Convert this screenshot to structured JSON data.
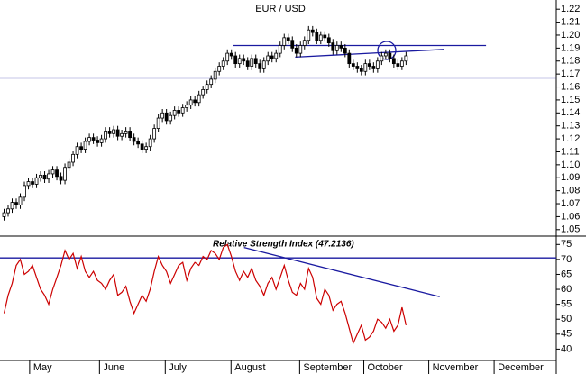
{
  "chart_data": [
    {
      "type": "candlestick",
      "title": "EUR / USD",
      "color": "#000000",
      "x": [
        0,
        1,
        2,
        3,
        4,
        5,
        6,
        7,
        8,
        9,
        10,
        11,
        12,
        13,
        14,
        15,
        16,
        17,
        18,
        19,
        20,
        21,
        22,
        23,
        24,
        25,
        26,
        27,
        28,
        29,
        30,
        31,
        32,
        33,
        34,
        35,
        36,
        37,
        38,
        39,
        40,
        41,
        42,
        43,
        44,
        45,
        46,
        47,
        48,
        49,
        50,
        51,
        52,
        53,
        54,
        55,
        56,
        57,
        58,
        59,
        60,
        61,
        62,
        63,
        64,
        65,
        66,
        67,
        68,
        69,
        70,
        71,
        72,
        73,
        74,
        75,
        76,
        77,
        78,
        79,
        80,
        81,
        82,
        83,
        84,
        85,
        86,
        87,
        88,
        89,
        90,
        91,
        92,
        93,
        94,
        95,
        96,
        97,
        98,
        99
      ],
      "open": [
        1.06,
        1.063,
        1.066,
        1.071,
        1.069,
        1.075,
        1.084,
        1.087,
        1.085,
        1.09,
        1.092,
        1.089,
        1.093,
        1.096,
        1.091,
        1.088,
        1.098,
        1.102,
        1.108,
        1.114,
        1.112,
        1.118,
        1.121,
        1.119,
        1.117,
        1.12,
        1.126,
        1.124,
        1.127,
        1.122,
        1.124,
        1.126,
        1.121,
        1.118,
        1.116,
        1.112,
        1.114,
        1.12,
        1.128,
        1.136,
        1.14,
        1.134,
        1.138,
        1.142,
        1.14,
        1.144,
        1.146,
        1.15,
        1.148,
        1.154,
        1.158,
        1.162,
        1.166,
        1.172,
        1.176,
        1.18,
        1.186,
        1.184,
        1.178,
        1.182,
        1.18,
        1.176,
        1.182,
        1.178,
        1.174,
        1.18,
        1.184,
        1.182,
        1.186,
        1.192,
        1.198,
        1.196,
        1.19,
        1.186,
        1.192,
        1.196,
        1.204,
        1.202,
        1.196,
        1.2,
        1.198,
        1.194,
        1.188,
        1.192,
        1.19,
        1.186,
        1.178,
        1.176,
        1.174,
        1.172,
        1.178,
        1.176,
        1.174,
        1.18,
        1.184,
        1.186,
        1.182,
        1.178,
        1.176,
        1.18
      ],
      "high": [
        1.066,
        1.069,
        1.074,
        1.074,
        1.078,
        1.087,
        1.09,
        1.09,
        1.093,
        1.095,
        1.095,
        1.096,
        1.099,
        1.099,
        1.094,
        1.101,
        1.105,
        1.111,
        1.117,
        1.117,
        1.121,
        1.124,
        1.124,
        1.122,
        1.123,
        1.129,
        1.129,
        1.13,
        1.13,
        1.127,
        1.129,
        1.129,
        1.124,
        1.121,
        1.119,
        1.117,
        1.123,
        1.131,
        1.139,
        1.143,
        1.143,
        1.141,
        1.145,
        1.145,
        1.147,
        1.149,
        1.153,
        1.153,
        1.157,
        1.161,
        1.165,
        1.169,
        1.175,
        1.179,
        1.183,
        1.189,
        1.189,
        1.187,
        1.185,
        1.185,
        1.183,
        1.185,
        1.185,
        1.181,
        1.183,
        1.187,
        1.187,
        1.189,
        1.195,
        1.201,
        1.201,
        1.199,
        1.193,
        1.195,
        1.199,
        1.207,
        1.207,
        1.205,
        1.203,
        1.203,
        1.201,
        1.197,
        1.195,
        1.195,
        1.193,
        1.189,
        1.181,
        1.179,
        1.177,
        1.181,
        1.181,
        1.179,
        1.183,
        1.187,
        1.189,
        1.189,
        1.185,
        1.181,
        1.183,
        1.187
      ],
      "low": [
        1.057,
        1.06,
        1.063,
        1.066,
        1.066,
        1.072,
        1.081,
        1.082,
        1.082,
        1.087,
        1.086,
        1.086,
        1.09,
        1.088,
        1.085,
        1.085,
        1.095,
        1.099,
        1.105,
        1.109,
        1.109,
        1.115,
        1.116,
        1.114,
        1.114,
        1.117,
        1.121,
        1.121,
        1.119,
        1.119,
        1.121,
        1.118,
        1.115,
        1.113,
        1.109,
        1.109,
        1.111,
        1.117,
        1.125,
        1.133,
        1.131,
        1.131,
        1.135,
        1.137,
        1.137,
        1.141,
        1.143,
        1.145,
        1.145,
        1.151,
        1.155,
        1.159,
        1.163,
        1.169,
        1.173,
        1.177,
        1.181,
        1.175,
        1.175,
        1.177,
        1.173,
        1.173,
        1.175,
        1.171,
        1.171,
        1.177,
        1.179,
        1.179,
        1.183,
        1.189,
        1.193,
        1.187,
        1.183,
        1.183,
        1.189,
        1.193,
        1.199,
        1.193,
        1.193,
        1.195,
        1.191,
        1.185,
        1.185,
        1.187,
        1.183,
        1.175,
        1.173,
        1.171,
        1.169,
        1.169,
        1.173,
        1.171,
        1.171,
        1.177,
        1.181,
        1.179,
        1.175,
        1.173,
        1.173,
        1.177
      ],
      "close": [
        1.063,
        1.066,
        1.071,
        1.069,
        1.075,
        1.084,
        1.087,
        1.085,
        1.09,
        1.092,
        1.089,
        1.093,
        1.096,
        1.091,
        1.088,
        1.098,
        1.102,
        1.108,
        1.114,
        1.112,
        1.118,
        1.121,
        1.119,
        1.117,
        1.12,
        1.126,
        1.124,
        1.127,
        1.122,
        1.124,
        1.126,
        1.121,
        1.118,
        1.116,
        1.112,
        1.114,
        1.12,
        1.128,
        1.136,
        1.14,
        1.134,
        1.138,
        1.142,
        1.14,
        1.144,
        1.146,
        1.15,
        1.148,
        1.154,
        1.158,
        1.162,
        1.166,
        1.172,
        1.176,
        1.18,
        1.186,
        1.184,
        1.178,
        1.182,
        1.18,
        1.176,
        1.182,
        1.178,
        1.174,
        1.18,
        1.184,
        1.182,
        1.186,
        1.192,
        1.198,
        1.196,
        1.19,
        1.186,
        1.192,
        1.196,
        1.204,
        1.202,
        1.196,
        1.2,
        1.198,
        1.194,
        1.188,
        1.192,
        1.19,
        1.186,
        1.178,
        1.176,
        1.174,
        1.172,
        1.178,
        1.176,
        1.174,
        1.18,
        1.184,
        1.186,
        1.182,
        1.178,
        1.176,
        1.18,
        1.184
      ],
      "xlim": [
        -1,
        136
      ],
      "ylim": [
        1.045,
        1.225
      ],
      "yticks": [
        1.05,
        1.06,
        1.07,
        1.08,
        1.09,
        {
          "value": 1.1,
          "label": "1.10"
        },
        1.11,
        1.12,
        1.13,
        1.14,
        1.15,
        1.16,
        1.17,
        1.18,
        1.19,
        {
          "value": 1.2,
          "label": "1.20"
        },
        1.21,
        1.22
      ],
      "lines": [
        {
          "color": "#1a1aa0",
          "x": [
            -1,
            136
          ],
          "y": [
            1.167,
            1.167
          ]
        },
        {
          "color": "#1a1aa0",
          "x": [
            56.4,
            118.7
          ],
          "y": [
            1.192,
            1.192
          ]
        },
        {
          "color": "#1a1aa0",
          "x": [
            71.7,
            108.4
          ],
          "y": [
            1.183,
            1.189
          ]
        }
      ]
    },
    {
      "type": "line",
      "title": "Relative Strength Index (47.2136)",
      "x": [
        0,
        1,
        2,
        3,
        4,
        5,
        6,
        7,
        8,
        9,
        10,
        11,
        12,
        13,
        14,
        15,
        16,
        17,
        18,
        19,
        20,
        21,
        22,
        23,
        24,
        25,
        26,
        27,
        28,
        29,
        30,
        31,
        32,
        33,
        34,
        35,
        36,
        37,
        38,
        39,
        40,
        41,
        42,
        43,
        44,
        45,
        46,
        47,
        48,
        49,
        50,
        51,
        52,
        53,
        54,
        55,
        56,
        57,
        58,
        59,
        60,
        61,
        62,
        63,
        64,
        65,
        66,
        67,
        68,
        69,
        70,
        71,
        72,
        73,
        74,
        75,
        76,
        77,
        78,
        79,
        80,
        81,
        82,
        83,
        84,
        85,
        86,
        87,
        88,
        89,
        90,
        91,
        92,
        93,
        94,
        95,
        96,
        97,
        98,
        99
      ],
      "series": [
        {
          "color": "#cc0000",
          "values": [
            52,
            58,
            62,
            68,
            70,
            65,
            66,
            68,
            64,
            60,
            58,
            55,
            60,
            64,
            68,
            73,
            70,
            72,
            67,
            71,
            66,
            64,
            66,
            63,
            62,
            60,
            63,
            65,
            58,
            59,
            61,
            56,
            52,
            55,
            58,
            56,
            60,
            66,
            71,
            68,
            66,
            62,
            65,
            68,
            69,
            63,
            67,
            69,
            68,
            71,
            70,
            73,
            72,
            70,
            74,
            75,
            71,
            66,
            63,
            66,
            64,
            67,
            63,
            61,
            58,
            62,
            64,
            60,
            64,
            68,
            63,
            59,
            58,
            62,
            60,
            67,
            64,
            57,
            55,
            60,
            58,
            53,
            55,
            56,
            52,
            47,
            42,
            45,
            48,
            43,
            44,
            46,
            50,
            49,
            47,
            50,
            46,
            48,
            54,
            48
          ]
        }
      ],
      "xlim": [
        -1,
        136
      ],
      "xticks": [
        {
          "value": 6.3,
          "label": "May"
        },
        {
          "value": 23.5,
          "label": "June"
        },
        {
          "value": 39.7,
          "label": "July"
        },
        {
          "value": 55.9,
          "label": "August"
        },
        {
          "value": 72.8,
          "label": "September"
        },
        {
          "value": 88.6,
          "label": "October"
        },
        {
          "value": 104.6,
          "label": "November"
        },
        {
          "value": 120.7,
          "label": "December"
        }
      ],
      "ylim": [
        36.5,
        77.5
      ],
      "yticks": [
        40,
        45,
        50,
        55,
        60,
        65,
        70,
        75
      ],
      "lines": [
        {
          "color": "#1a1aa0",
          "x": [
            -1,
            136
          ],
          "y": [
            70.5,
            70.5
          ]
        },
        {
          "color": "#1a1aa0",
          "x": [
            59.1,
            107.3
          ],
          "y": [
            74,
            57.5
          ]
        }
      ]
    }
  ]
}
